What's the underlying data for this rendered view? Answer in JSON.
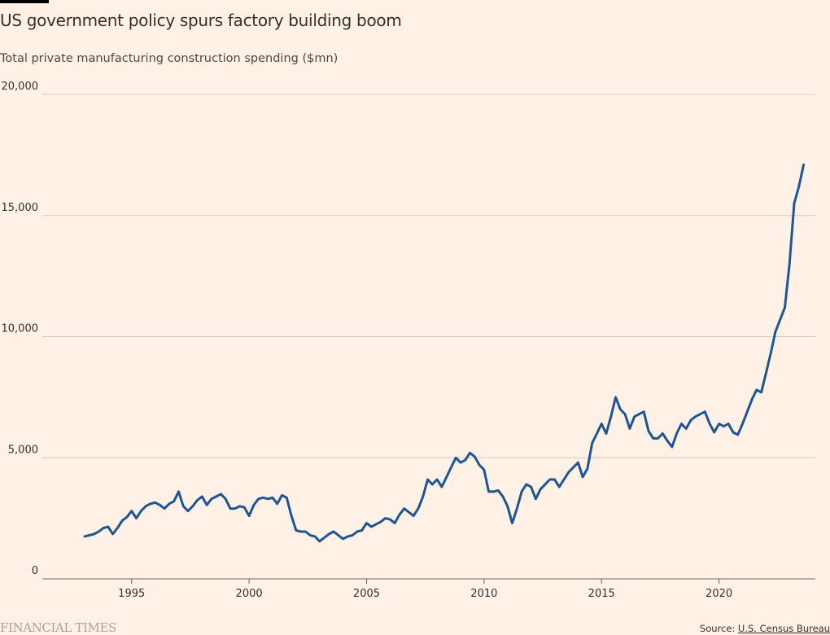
{
  "header": {
    "title": "US government policy spurs factory building boom",
    "subtitle": "Total private manufacturing construction spending ($mn)"
  },
  "footer": {
    "brand": "FINANCIAL TIMES",
    "source_prefix": "Source: ",
    "source_link": "U.S. Census Bureau"
  },
  "colors": {
    "background": "#fff1e5",
    "line": "#1f5593",
    "grid": "#d5cbc2",
    "text": "#33302e"
  },
  "chart_data": {
    "type": "line",
    "title": "US government policy spurs factory building boom",
    "ylabel": "Total private manufacturing construction spending ($mn)",
    "xlabel": "",
    "xlim": [
      1991.2,
      2024.1
    ],
    "ylim": [
      0,
      20000
    ],
    "yticks": [
      0,
      5000,
      10000,
      15000,
      20000
    ],
    "ytick_labels": [
      "0",
      "5,000",
      "10,000",
      "15,000",
      "20,000"
    ],
    "xticks": [
      1995,
      2000,
      2005,
      2010,
      2015,
      2020
    ],
    "xtick_labels": [
      "1995",
      "2000",
      "2005",
      "2010",
      "2015",
      "2020"
    ],
    "grid": "horizontal",
    "series": [
      {
        "x": [
          1993.0,
          1993.2,
          1993.4,
          1993.6,
          1993.8,
          1994.0,
          1994.2,
          1994.4,
          1994.6,
          1994.8,
          1995.0,
          1995.2,
          1995.4,
          1995.6,
          1995.8,
          1996.0,
          1996.2,
          1996.4,
          1996.6,
          1996.8,
          1997.0,
          1997.2,
          1997.4,
          1997.6,
          1997.8,
          1998.0,
          1998.2,
          1998.4,
          1998.6,
          1998.8,
          1999.0,
          1999.2,
          1999.4,
          1999.6,
          1999.8,
          2000.0,
          2000.2,
          2000.4,
          2000.6,
          2000.8,
          2001.0,
          2001.2,
          2001.4,
          2001.6,
          2001.8,
          2002.0,
          2002.2,
          2002.4,
          2002.6,
          2002.8,
          2003.0,
          2003.2,
          2003.4,
          2003.6,
          2003.8,
          2004.0,
          2004.2,
          2004.4,
          2004.6,
          2004.8,
          2005.0,
          2005.2,
          2005.4,
          2005.6,
          2005.8,
          2006.0,
          2006.2,
          2006.4,
          2006.6,
          2006.8,
          2007.0,
          2007.2,
          2007.4,
          2007.6,
          2007.8,
          2008.0,
          2008.2,
          2008.4,
          2008.6,
          2008.8,
          2009.0,
          2009.2,
          2009.4,
          2009.6,
          2009.8,
          2010.0,
          2010.2,
          2010.4,
          2010.6,
          2010.8,
          2011.0,
          2011.2,
          2011.4,
          2011.6,
          2011.8,
          2012.0,
          2012.2,
          2012.4,
          2012.6,
          2012.8,
          2013.0,
          2013.2,
          2013.4,
          2013.6,
          2013.8,
          2014.0,
          2014.2,
          2014.4,
          2014.6,
          2014.8,
          2015.0,
          2015.2,
          2015.4,
          2015.6,
          2015.8,
          2016.0,
          2016.2,
          2016.4,
          2016.6,
          2016.8,
          2017.0,
          2017.2,
          2017.4,
          2017.6,
          2017.8,
          2018.0,
          2018.2,
          2018.4,
          2018.6,
          2018.8,
          2019.0,
          2019.2,
          2019.4,
          2019.6,
          2019.8,
          2020.0,
          2020.2,
          2020.4,
          2020.6,
          2020.8,
          2021.0,
          2021.2,
          2021.4,
          2021.6,
          2021.8,
          2022.0,
          2022.2,
          2022.4,
          2022.6,
          2022.8,
          2023.0,
          2023.2,
          2023.4,
          2023.6
        ],
        "values": [
          1750,
          1800,
          1850,
          1950,
          2100,
          2150,
          1850,
          2100,
          2400,
          2550,
          2800,
          2500,
          2800,
          3000,
          3100,
          3150,
          3050,
          2900,
          3100,
          3200,
          3600,
          3000,
          2800,
          3000,
          3250,
          3400,
          3050,
          3300,
          3400,
          3500,
          3300,
          2900,
          2900,
          3000,
          2950,
          2600,
          3050,
          3300,
          3350,
          3300,
          3350,
          3100,
          3450,
          3350,
          2600,
          2000,
          1950,
          1950,
          1800,
          1750,
          1550,
          1700,
          1850,
          1950,
          1800,
          1650,
          1750,
          1800,
          1950,
          2000,
          2300,
          2150,
          2250,
          2350,
          2500,
          2450,
          2300,
          2650,
          2900,
          2750,
          2600,
          2900,
          3400,
          4100,
          3900,
          4100,
          3800,
          4200,
          4600,
          5000,
          4800,
          4900,
          5200,
          5050,
          4700,
          4500,
          3600,
          3600,
          3650,
          3400,
          3000,
          2300,
          2900,
          3600,
          3900,
          3800,
          3300,
          3700,
          3900,
          4100,
          4100,
          3800,
          4100,
          4400,
          4600,
          4800,
          4200,
          4550,
          5600,
          6000,
          6400,
          6000,
          6700,
          7500,
          7000,
          6800,
          6200,
          6700,
          6800,
          6900,
          6100,
          5800,
          5800,
          6000,
          5700,
          5450,
          6000,
          6400,
          6200,
          6550,
          6700,
          6800,
          6900,
          6400,
          6050,
          6400,
          6300,
          6400,
          6050,
          5950,
          6400,
          6900,
          7400,
          7800,
          7700,
          8500,
          9300,
          10200,
          10700,
          11200,
          13000,
          15500,
          16200,
          17100
        ]
      }
    ]
  }
}
